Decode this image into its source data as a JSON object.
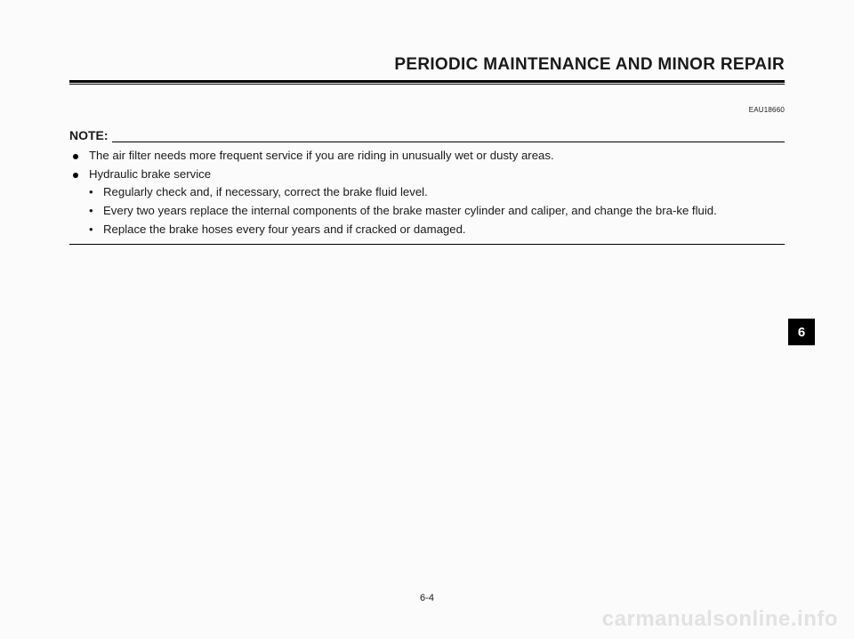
{
  "header": {
    "title": "PERIODIC MAINTENANCE AND MINOR REPAIR"
  },
  "doc_code": "EAU18660",
  "note": {
    "label": "NOTE:",
    "items": [
      "The air filter needs more frequent service if you are riding in unusually wet or dusty areas.",
      "Hydraulic brake service"
    ],
    "subitems": [
      "Regularly check and, if necessary, correct the brake fluid level.",
      "Every two years replace the internal components of the brake master cylinder and caliper, and change the bra-ke fluid.",
      "Replace the brake hoses every four years and if cracked or damaged."
    ]
  },
  "tab": {
    "number": "6"
  },
  "page_number": "6-4",
  "watermark": "carmanualsonline.info",
  "bullets": {
    "primary": "●",
    "secondary": "•"
  }
}
